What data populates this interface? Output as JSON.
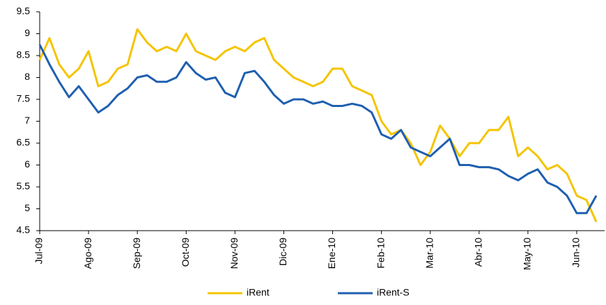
{
  "chart_data": {
    "type": "line",
    "categories": [
      "Jul-09",
      null,
      null,
      null,
      null,
      "Ago-09",
      null,
      null,
      null,
      null,
      "Sep-09",
      null,
      null,
      null,
      null,
      "Oct-09",
      null,
      null,
      null,
      null,
      "Nov-09",
      null,
      null,
      null,
      null,
      "Dic-09",
      null,
      null,
      null,
      null,
      "Ene-10",
      null,
      null,
      null,
      null,
      "Feb-10",
      null,
      null,
      null,
      null,
      "Mar-10",
      null,
      null,
      null,
      null,
      "Abr-10",
      null,
      null,
      null,
      null,
      "May-10",
      null,
      null,
      null,
      null,
      "Jun-10",
      null,
      null
    ],
    "series": [
      {
        "name": "iRent",
        "color": "#f5c400",
        "values": [
          8.4,
          8.9,
          8.3,
          8.0,
          8.2,
          8.6,
          7.8,
          7.9,
          8.2,
          8.3,
          9.1,
          8.8,
          8.6,
          8.7,
          8.6,
          9.0,
          8.6,
          8.5,
          8.4,
          8.6,
          8.7,
          8.6,
          8.8,
          8.9,
          8.4,
          8.2,
          8.0,
          7.9,
          7.8,
          7.9,
          8.2,
          8.2,
          7.8,
          7.7,
          7.6,
          7.0,
          6.7,
          6.8,
          6.5,
          6.0,
          6.3,
          6.9,
          6.6,
          6.2,
          6.5,
          6.5,
          6.8,
          6.8,
          7.1,
          6.2,
          6.4,
          6.2,
          5.9,
          6.0,
          5.8,
          5.3,
          5.2,
          4.7
        ]
      },
      {
        "name": "iRent-S",
        "color": "#1f5fb0",
        "values": [
          8.75,
          8.3,
          7.9,
          7.55,
          7.8,
          7.5,
          7.2,
          7.35,
          7.6,
          7.75,
          8.0,
          8.05,
          7.9,
          7.9,
          8.0,
          8.35,
          8.1,
          7.95,
          8.0,
          7.65,
          7.55,
          8.1,
          8.15,
          7.9,
          7.6,
          7.4,
          7.5,
          7.5,
          7.4,
          7.45,
          7.35,
          7.35,
          7.4,
          7.35,
          7.2,
          6.7,
          6.6,
          6.8,
          6.4,
          6.3,
          6.2,
          6.4,
          6.6,
          6.0,
          6.0,
          5.95,
          5.95,
          5.9,
          5.75,
          5.65,
          5.8,
          5.9,
          5.6,
          5.5,
          5.3,
          4.9,
          4.9,
          5.3
        ]
      }
    ],
    "ylim": [
      4.5,
      9.5
    ],
    "yticks": [
      4.5,
      5,
      5.5,
      6,
      6.5,
      7,
      7.5,
      8,
      8.5,
      9,
      9.5
    ],
    "grid": false,
    "legend": "bottom"
  }
}
